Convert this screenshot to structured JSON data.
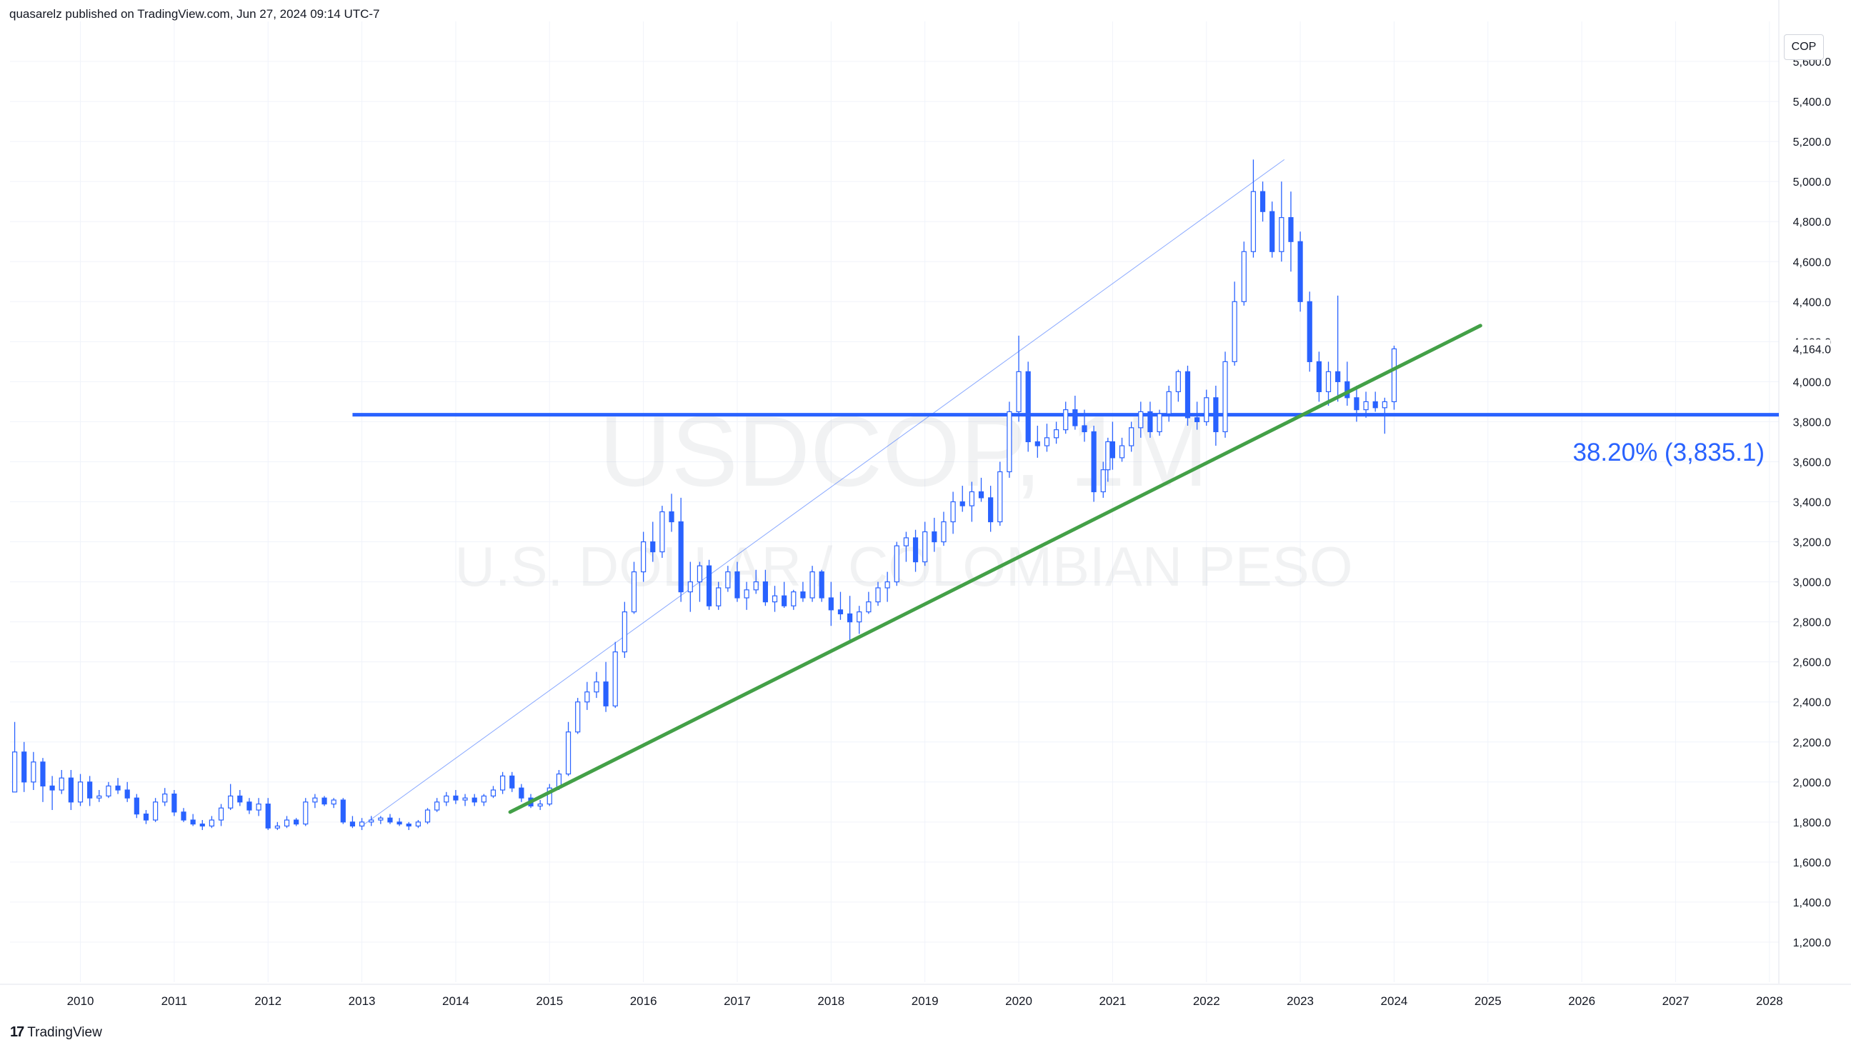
{
  "header": {
    "publisher_line": "quasarelz published on TradingView.com, Jun 27, 2024 09:14 UTC-7"
  },
  "footer": {
    "logo_mark": "17",
    "logo_text": "TradingView"
  },
  "currency_label": "COP",
  "watermark": {
    "symbol": "USDCOP, 1M",
    "description": "U.S. DOLLAR / COLOMBIAN PESO"
  },
  "colors": {
    "up": "#ffffff",
    "down": "#2962ff",
    "wick": "#2962ff",
    "trendline": "#43a047",
    "fib_line": "#2962ff",
    "grid": "#f0f3fa",
    "watermark": "#787b86"
  },
  "chart_data": {
    "type": "candlestick",
    "symbol": "USDCOP",
    "interval": "1M",
    "x_ticks": [
      "2010",
      "2011",
      "2012",
      "2013",
      "2014",
      "2015",
      "2016",
      "2017",
      "2018",
      "2019",
      "2020",
      "2021",
      "2022",
      "2023",
      "2024",
      "2025",
      "2026",
      "2027",
      "2028"
    ],
    "y_ticks": [
      "1,200.0",
      "1,400.0",
      "1,600.0",
      "1,800.0",
      "2,000.0",
      "2,200.0",
      "2,400.0",
      "2,600.0",
      "2,800.0",
      "3,000.0",
      "3,200.0",
      "3,400.0",
      "3,600.0",
      "3,800.0",
      "4,000.0",
      "4,200.0",
      "4,400.0",
      "4,600.0",
      "4,800.0",
      "5,000.0",
      "5,200.0",
      "5,400.0",
      "5,600.0"
    ],
    "ylim": [
      1000,
      5800
    ],
    "last_price_label": "4,164.0",
    "last_price": 4164,
    "fib_level": {
      "label": "38.20% (3,835.1)",
      "value": 3835.1,
      "x_start": 2012.9
    },
    "trendline": {
      "x1": 2014.58,
      "y1": 1850,
      "x2": 2024.92,
      "y2": 4280
    },
    "fib_range_line": {
      "x1": 2013.0,
      "y1": 1780,
      "x2": 2022.83,
      "y2": 5110
    },
    "candles": [
      [
        2009.3,
        1950,
        2300,
        1950,
        2150
      ],
      [
        2009.4,
        2150,
        2200,
        1950,
        2000
      ],
      [
        2009.5,
        2000,
        2150,
        1960,
        2100
      ],
      [
        2009.6,
        2100,
        2120,
        1900,
        1980
      ],
      [
        2009.7,
        1980,
        2030,
        1860,
        1960
      ],
      [
        2009.8,
        1960,
        2060,
        1940,
        2020
      ],
      [
        2009.9,
        2020,
        2060,
        1860,
        1900
      ],
      [
        2010.0,
        1900,
        2040,
        1880,
        2000
      ],
      [
        2010.1,
        2000,
        2030,
        1880,
        1920
      ],
      [
        2010.2,
        1920,
        1960,
        1900,
        1930
      ],
      [
        2010.3,
        1930,
        2000,
        1920,
        1980
      ],
      [
        2010.4,
        1980,
        2020,
        1940,
        1960
      ],
      [
        2010.5,
        1960,
        2000,
        1900,
        1920
      ],
      [
        2010.6,
        1920,
        1940,
        1820,
        1840
      ],
      [
        2010.7,
        1840,
        1860,
        1790,
        1810
      ],
      [
        2010.8,
        1810,
        1920,
        1800,
        1900
      ],
      [
        2010.9,
        1900,
        1970,
        1880,
        1940
      ],
      [
        2011.0,
        1940,
        1960,
        1830,
        1850
      ],
      [
        2011.1,
        1850,
        1870,
        1800,
        1810
      ],
      [
        2011.2,
        1810,
        1840,
        1780,
        1790
      ],
      [
        2011.3,
        1790,
        1810,
        1760,
        1780
      ],
      [
        2011.4,
        1780,
        1830,
        1770,
        1810
      ],
      [
        2011.5,
        1810,
        1890,
        1780,
        1870
      ],
      [
        2011.6,
        1870,
        1990,
        1860,
        1930
      ],
      [
        2011.7,
        1930,
        1960,
        1880,
        1900
      ],
      [
        2011.8,
        1900,
        1920,
        1840,
        1860
      ],
      [
        2011.9,
        1860,
        1920,
        1830,
        1890
      ],
      [
        2012.0,
        1890,
        1920,
        1760,
        1770
      ],
      [
        2012.1,
        1770,
        1800,
        1760,
        1780
      ],
      [
        2012.2,
        1780,
        1830,
        1770,
        1810
      ],
      [
        2012.3,
        1810,
        1820,
        1780,
        1790
      ],
      [
        2012.4,
        1790,
        1920,
        1780,
        1900
      ],
      [
        2012.5,
        1900,
        1940,
        1870,
        1920
      ],
      [
        2012.6,
        1920,
        1930,
        1880,
        1890
      ],
      [
        2012.7,
        1890,
        1920,
        1870,
        1910
      ],
      [
        2012.8,
        1910,
        1920,
        1790,
        1800
      ],
      [
        2012.9,
        1800,
        1830,
        1770,
        1780
      ],
      [
        2013.0,
        1780,
        1820,
        1760,
        1800
      ],
      [
        2013.1,
        1800,
        1830,
        1780,
        1810
      ],
      [
        2013.2,
        1810,
        1830,
        1790,
        1820
      ],
      [
        2013.3,
        1820,
        1840,
        1790,
        1800
      ],
      [
        2013.4,
        1800,
        1820,
        1780,
        1790
      ],
      [
        2013.5,
        1790,
        1800,
        1760,
        1780
      ],
      [
        2013.6,
        1780,
        1810,
        1770,
        1800
      ],
      [
        2013.7,
        1800,
        1870,
        1790,
        1860
      ],
      [
        2013.8,
        1860,
        1920,
        1850,
        1900
      ],
      [
        2013.9,
        1900,
        1950,
        1880,
        1930
      ],
      [
        2014.0,
        1930,
        1960,
        1890,
        1910
      ],
      [
        2014.1,
        1910,
        1940,
        1880,
        1920
      ],
      [
        2014.2,
        1920,
        1940,
        1880,
        1900
      ],
      [
        2014.3,
        1900,
        1940,
        1880,
        1930
      ],
      [
        2014.4,
        1930,
        1980,
        1920,
        1960
      ],
      [
        2014.5,
        1960,
        2050,
        1940,
        2030
      ],
      [
        2014.6,
        2030,
        2050,
        1950,
        1970
      ],
      [
        2014.7,
        1970,
        1990,
        1900,
        1920
      ],
      [
        2014.8,
        1920,
        1940,
        1870,
        1880
      ],
      [
        2014.9,
        1880,
        1910,
        1860,
        1890
      ],
      [
        2015.0,
        1890,
        1990,
        1880,
        1970
      ],
      [
        2015.1,
        1970,
        2060,
        1960,
        2040
      ],
      [
        2015.2,
        2040,
        2300,
        2030,
        2250
      ],
      [
        2015.3,
        2250,
        2420,
        2240,
        2400
      ],
      [
        2015.4,
        2400,
        2500,
        2360,
        2450
      ],
      [
        2015.5,
        2450,
        2550,
        2420,
        2500
      ],
      [
        2015.6,
        2500,
        2600,
        2350,
        2380
      ],
      [
        2015.7,
        2380,
        2700,
        2370,
        2650
      ],
      [
        2015.8,
        2650,
        2900,
        2620,
        2850
      ],
      [
        2015.9,
        2850,
        3100,
        2840,
        3050
      ],
      [
        2016.0,
        3050,
        3250,
        3000,
        3200
      ],
      [
        2016.1,
        3200,
        3300,
        3100,
        3150
      ],
      [
        2016.2,
        3150,
        3380,
        3120,
        3350
      ],
      [
        2016.3,
        3350,
        3440,
        3250,
        3300
      ],
      [
        2016.4,
        3300,
        3420,
        2900,
        2950
      ],
      [
        2016.5,
        2950,
        3100,
        2850,
        3000
      ],
      [
        2016.6,
        3000,
        3100,
        2900,
        3080
      ],
      [
        2016.7,
        3080,
        3110,
        2860,
        2880
      ],
      [
        2016.8,
        2880,
        3000,
        2860,
        2970
      ],
      [
        2016.9,
        2970,
        3080,
        2950,
        3050
      ],
      [
        2017.0,
        3050,
        3100,
        2900,
        2920
      ],
      [
        2017.1,
        2920,
        3000,
        2860,
        2960
      ],
      [
        2017.2,
        2960,
        3060,
        2940,
        3000
      ],
      [
        2017.3,
        3000,
        3060,
        2880,
        2900
      ],
      [
        2017.4,
        2900,
        2980,
        2850,
        2930
      ],
      [
        2017.5,
        2930,
        3000,
        2870,
        2880
      ],
      [
        2017.6,
        2880,
        2960,
        2860,
        2950
      ],
      [
        2017.7,
        2950,
        3000,
        2900,
        2920
      ],
      [
        2017.8,
        2920,
        3080,
        2900,
        3050
      ],
      [
        2017.9,
        3050,
        3060,
        2900,
        2920
      ],
      [
        2018.0,
        2920,
        3000,
        2780,
        2860
      ],
      [
        2018.1,
        2860,
        2950,
        2810,
        2840
      ],
      [
        2018.2,
        2840,
        2930,
        2700,
        2800
      ],
      [
        2018.3,
        2800,
        2880,
        2740,
        2850
      ],
      [
        2018.4,
        2850,
        2950,
        2840,
        2900
      ],
      [
        2018.5,
        2900,
        3000,
        2880,
        2970
      ],
      [
        2018.6,
        2970,
        3050,
        2900,
        3000
      ],
      [
        2018.7,
        3000,
        3200,
        2980,
        3180
      ],
      [
        2018.8,
        3180,
        3250,
        3100,
        3220
      ],
      [
        2018.9,
        3220,
        3260,
        3050,
        3100
      ],
      [
        2019.0,
        3100,
        3300,
        3080,
        3250
      ],
      [
        2019.1,
        3250,
        3320,
        3150,
        3200
      ],
      [
        2019.2,
        3200,
        3350,
        3180,
        3300
      ],
      [
        2019.3,
        3300,
        3450,
        3240,
        3400
      ],
      [
        2019.4,
        3400,
        3480,
        3350,
        3380
      ],
      [
        2019.5,
        3380,
        3500,
        3300,
        3450
      ],
      [
        2019.6,
        3450,
        3520,
        3400,
        3420
      ],
      [
        2019.7,
        3420,
        3480,
        3250,
        3300
      ],
      [
        2019.8,
        3300,
        3600,
        3280,
        3550
      ],
      [
        2019.9,
        3550,
        3900,
        3520,
        3850
      ],
      [
        2020.0,
        3850,
        4230,
        3800,
        4050
      ],
      [
        2020.1,
        4050,
        4100,
        3650,
        3700
      ],
      [
        2020.2,
        3700,
        3780,
        3620,
        3680
      ],
      [
        2020.3,
        3680,
        3790,
        3650,
        3720
      ],
      [
        2020.4,
        3720,
        3800,
        3690,
        3760
      ],
      [
        2020.5,
        3760,
        3900,
        3740,
        3860
      ],
      [
        2020.6,
        3860,
        3930,
        3760,
        3780
      ],
      [
        2020.7,
        3780,
        3860,
        3700,
        3750
      ],
      [
        2020.8,
        3750,
        3780,
        3400,
        3450
      ],
      [
        2020.9,
        3450,
        3600,
        3420,
        3560
      ],
      [
        2020.95,
        3560,
        3720,
        3500,
        3700
      ],
      [
        2021.0,
        3700,
        3800,
        3560,
        3620
      ],
      [
        2021.1,
        3620,
        3720,
        3600,
        3680
      ],
      [
        2021.2,
        3680,
        3800,
        3650,
        3770
      ],
      [
        2021.3,
        3770,
        3900,
        3720,
        3850
      ],
      [
        2021.4,
        3850,
        3900,
        3720,
        3750
      ],
      [
        2021.5,
        3750,
        3860,
        3730,
        3840
      ],
      [
        2021.6,
        3840,
        3980,
        3800,
        3950
      ],
      [
        2021.7,
        3950,
        4060,
        3900,
        4050
      ],
      [
        2021.8,
        4050,
        4080,
        3780,
        3820
      ],
      [
        2021.9,
        3820,
        3900,
        3760,
        3800
      ],
      [
        2022.0,
        3800,
        3960,
        3780,
        3920
      ],
      [
        2022.1,
        3920,
        3980,
        3680,
        3750
      ],
      [
        2022.2,
        3750,
        4150,
        3720,
        4100
      ],
      [
        2022.3,
        4100,
        4500,
        4080,
        4400
      ],
      [
        2022.4,
        4400,
        4700,
        4380,
        4650
      ],
      [
        2022.5,
        4650,
        5110,
        4620,
        4950
      ],
      [
        2022.6,
        4950,
        5000,
        4800,
        4850
      ],
      [
        2022.7,
        4850,
        4900,
        4620,
        4650
      ],
      [
        2022.8,
        4650,
        5000,
        4600,
        4820
      ],
      [
        2022.9,
        4820,
        4950,
        4550,
        4700
      ],
      [
        2023.0,
        4700,
        4750,
        4350,
        4400
      ],
      [
        2023.1,
        4400,
        4450,
        4050,
        4100
      ],
      [
        2023.2,
        4100,
        4150,
        3900,
        3950
      ],
      [
        2023.3,
        3950,
        4100,
        3880,
        4050
      ],
      [
        2023.4,
        4050,
        4430,
        3900,
        4000
      ],
      [
        2023.5,
        4000,
        4100,
        3880,
        3920
      ],
      [
        2023.6,
        3920,
        3980,
        3800,
        3860
      ],
      [
        2023.7,
        3860,
        3950,
        3820,
        3900
      ],
      [
        2023.8,
        3900,
        3950,
        3850,
        3870
      ],
      [
        2023.9,
        3870,
        3920,
        3740,
        3900
      ],
      [
        2024.0,
        3900,
        4180,
        3860,
        4164
      ]
    ]
  }
}
